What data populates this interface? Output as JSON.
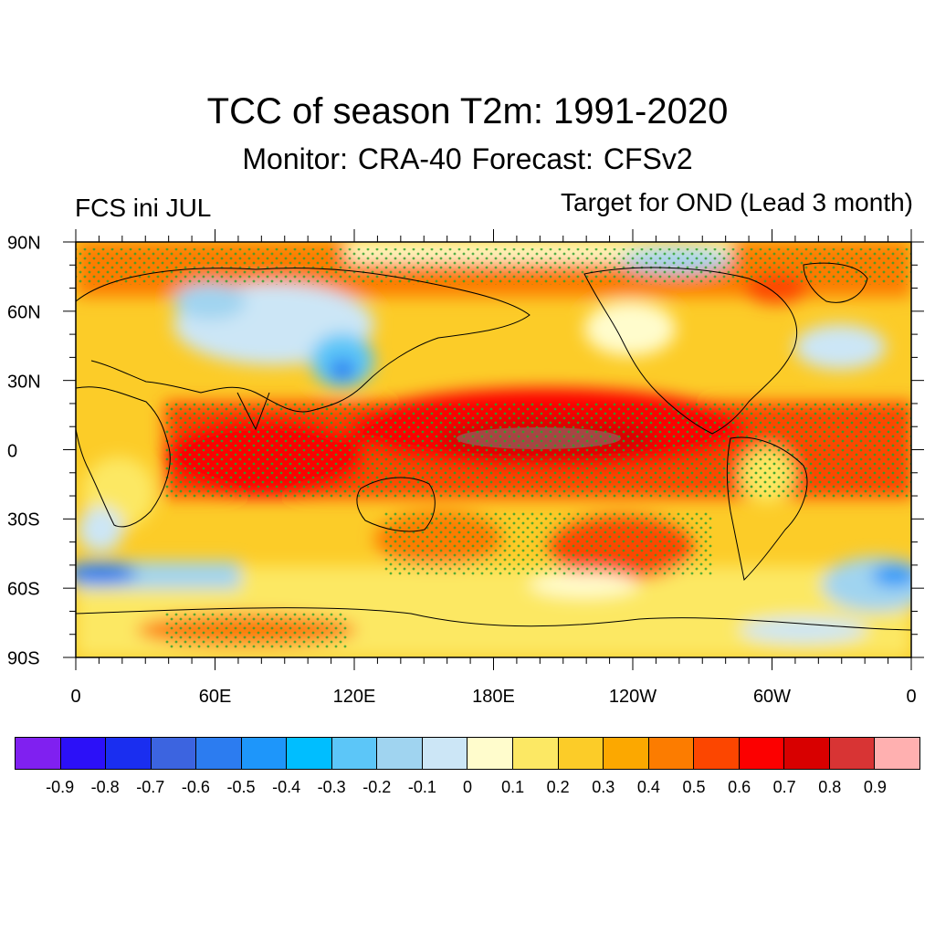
{
  "title": "TCC of season T2m: 1991-2020",
  "subtitle": "Monitor: CRA-40   Forecast: CFSv2",
  "left_label": "FCS ini JUL",
  "right_label": "Target for OND (Lead 3 month)",
  "lat_labels": [
    "90N",
    "60N",
    "30N",
    "0",
    "30S",
    "60S",
    "90S"
  ],
  "lon_labels": [
    "0",
    "60E",
    "120E",
    "180E",
    "120W",
    "60W",
    "0"
  ],
  "colorbar": {
    "colors": [
      "#8020f0",
      "#2c10f8",
      "#1a2ef0",
      "#3c64e0",
      "#2c7cf0",
      "#1e96fa",
      "#00beff",
      "#5cc6f8",
      "#a0d4f0",
      "#cce6f6",
      "#fffccc",
      "#fce864",
      "#fccc28",
      "#fca800",
      "#fc7c00",
      "#fc4600",
      "#fc0000",
      "#d80000",
      "#d83434",
      "#ffb0b0"
    ],
    "labels": [
      "-0.9",
      "-0.8",
      "-0.7",
      "-0.6",
      "-0.5",
      "-0.4",
      "-0.3",
      "-0.2",
      "-0.1",
      "0",
      "0.1",
      "0.2",
      "0.3",
      "0.4",
      "0.5",
      "0.6",
      "0.7",
      "0.8",
      "0.9"
    ]
  },
  "stipple_color": "#2ca02c",
  "coastline_color": "#000000"
}
